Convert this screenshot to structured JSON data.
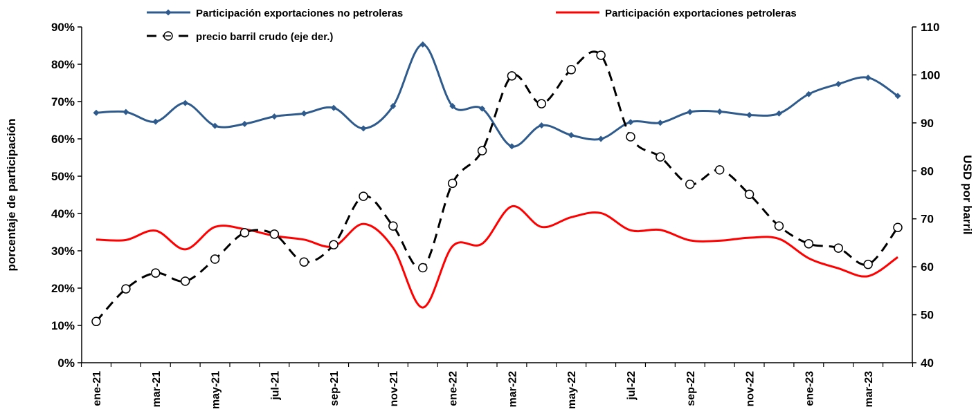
{
  "chart_data": {
    "type": "line",
    "categories": [
      "ene-21",
      null,
      "mar-21",
      null,
      "may-21",
      null,
      "jul-21",
      null,
      "sep-21",
      null,
      "nov-21",
      null,
      "ene-22",
      null,
      "mar-22",
      null,
      "may-22",
      null,
      "jul-22",
      null,
      "sep-22",
      null,
      "nov-22",
      null,
      "ene-23",
      null,
      "mar-23",
      null
    ],
    "y_label": "porcentaje de participación",
    "y2_label": "USD  por barril",
    "ylim": [
      0,
      90
    ],
    "yticks": [
      {
        "value": 0,
        "label": "0%"
      },
      {
        "value": 10,
        "label": "10%"
      },
      {
        "value": 20,
        "label": "20%"
      },
      {
        "value": 30,
        "label": "30%"
      },
      {
        "value": 40,
        "label": "40%"
      },
      {
        "value": 50,
        "label": "50%"
      },
      {
        "value": 60,
        "label": "60%"
      },
      {
        "value": 70,
        "label": "70%"
      },
      {
        "value": 80,
        "label": "80%"
      },
      {
        "value": 90,
        "label": "90%"
      }
    ],
    "y2lim": [
      40,
      110
    ],
    "y2ticks": [
      40,
      50,
      60,
      70,
      80,
      90,
      100,
      110
    ],
    "series": [
      {
        "name": "Participación exportaciones no petroleras",
        "color": "#2e5a8c",
        "marker": "diamond",
        "values": [
          67,
          67.2,
          64.6,
          69.6,
          63.5,
          64,
          66,
          66.8,
          68.3,
          62.8,
          68.8,
          85.3,
          68.8,
          68.1,
          58,
          63.6,
          61,
          60,
          64.5,
          64.3,
          67.2,
          67.3,
          66.4,
          66.8,
          72,
          74.7,
          76.4,
          71.5
        ]
      },
      {
        "name": "Participación exportaciones petroleras",
        "color": "#ff0000",
        "marker": "none",
        "values": [
          33,
          32.9,
          35.4,
          30.4,
          36.4,
          35.8,
          34,
          33,
          31.2,
          37.2,
          30.8,
          14.8,
          31.2,
          31.9,
          41.9,
          36.4,
          39,
          40.1,
          35.5,
          35.6,
          32.8,
          32.7,
          33.5,
          33.2,
          28,
          25.3,
          23.2,
          28.3
        ]
      },
      {
        "name": "precio barril crudo (eje der.)",
        "color": "#000000",
        "marker": "circle",
        "dashed": true,
        "axis": "y2",
        "values": [
          48.6,
          55.4,
          58.7,
          57,
          61.6,
          67.1,
          66.8,
          61,
          64.6,
          74.7,
          68.5,
          59.8,
          77.4,
          84.2,
          99.8,
          94,
          101.1,
          104.1,
          87.1,
          82.9,
          77.2,
          80.2,
          75.1,
          68.5,
          64.8,
          63.9,
          60.5,
          68.2
        ]
      }
    ]
  }
}
